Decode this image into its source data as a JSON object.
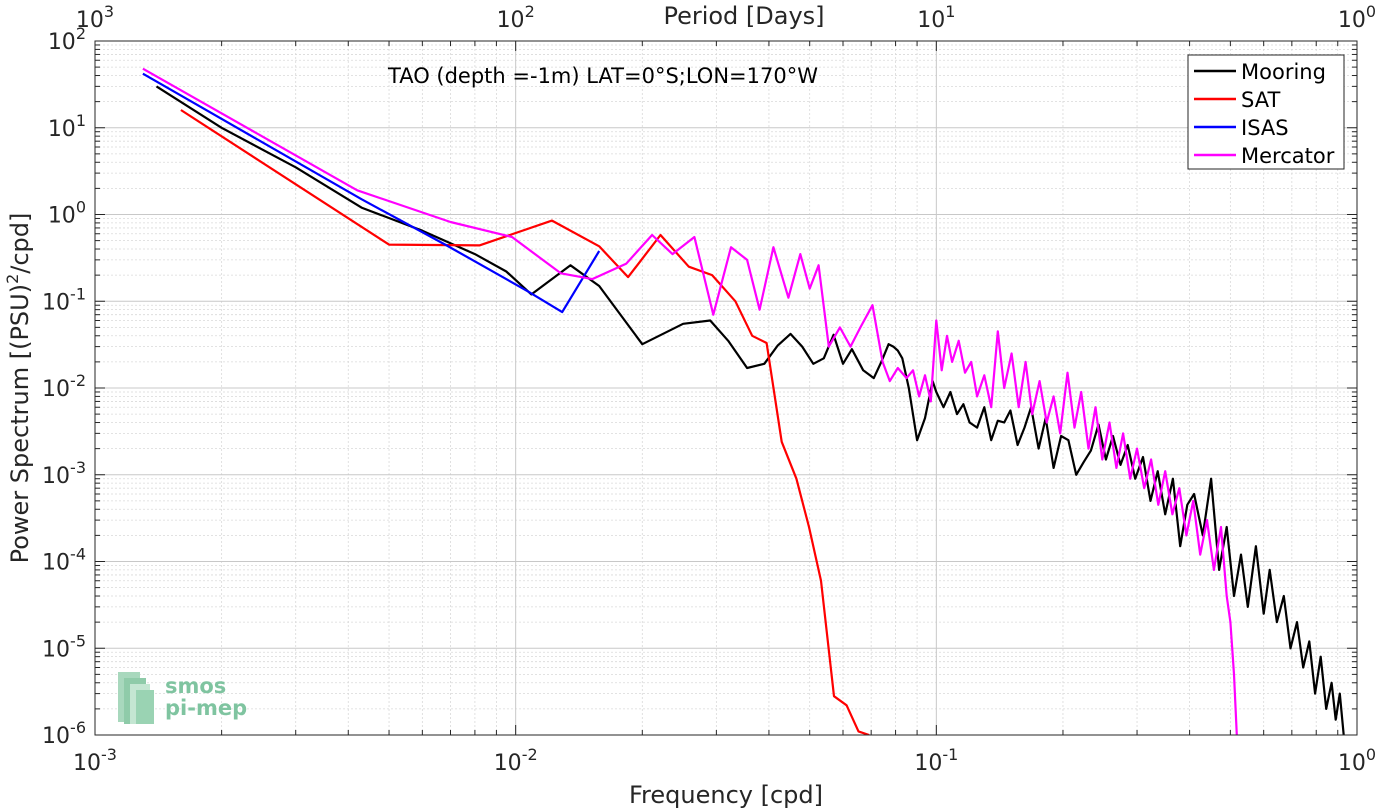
{
  "chart_data": {
    "type": "line",
    "x_scale": "log",
    "y_scale": "log",
    "xlabel": "Frequency [cpd]",
    "ylabel": "Power Spectrum [(PSU)",
    "ylabel_sup": "2",
    "ylabel_end": "/cpd]",
    "top_xlabel": "Period [Days]",
    "xlim": [
      0.001,
      1
    ],
    "ylim": [
      1e-06,
      100
    ],
    "grid": true,
    "annotation": "TAO (depth =-1m) LAT=0°S;LON=170°W",
    "legend_position": "top-right",
    "x_ticks": [
      {
        "value": 0.001,
        "base": "10",
        "exp": "-3"
      },
      {
        "value": 0.01,
        "base": "10",
        "exp": "-2"
      },
      {
        "value": 0.1,
        "base": "10",
        "exp": "-1"
      },
      {
        "value": 1,
        "base": "10",
        "exp": "0"
      }
    ],
    "top_ticks": [
      {
        "value": 0.001,
        "base": "10",
        "exp": "3"
      },
      {
        "value": 0.01,
        "base": "10",
        "exp": "2"
      },
      {
        "value": 0.1,
        "base": "10",
        "exp": "1"
      },
      {
        "value": 1,
        "base": "10",
        "exp": "0"
      }
    ],
    "y_ticks": [
      {
        "value": 100,
        "base": "10",
        "exp": "2"
      },
      {
        "value": 10,
        "base": "10",
        "exp": "1"
      },
      {
        "value": 1,
        "base": "10",
        "exp": "0"
      },
      {
        "value": 0.1,
        "base": "10",
        "exp": "-1"
      },
      {
        "value": 0.01,
        "base": "10",
        "exp": "-2"
      },
      {
        "value": 0.001,
        "base": "10",
        "exp": "-3"
      },
      {
        "value": 0.0001,
        "base": "10",
        "exp": "-4"
      },
      {
        "value": 1e-05,
        "base": "10",
        "exp": "-5"
      },
      {
        "value": 1e-06,
        "base": "10",
        "exp": "-6"
      }
    ],
    "series": [
      {
        "name": "Mooring",
        "color": "#000000",
        "x": [
          0.0014,
          0.002,
          0.003,
          0.0043,
          0.006,
          0.008,
          0.0095,
          0.0109,
          0.012,
          0.0135,
          0.0158,
          0.02,
          0.025,
          0.029,
          0.032,
          0.0355,
          0.039,
          0.042,
          0.045,
          0.048,
          0.051,
          0.054,
          0.057,
          0.06,
          0.063,
          0.067,
          0.071,
          0.074,
          0.077,
          0.079,
          0.081,
          0.083,
          0.086,
          0.09,
          0.094,
          0.098,
          0.1,
          0.104,
          0.108,
          0.112,
          0.116,
          0.12,
          0.125,
          0.13,
          0.135,
          0.14,
          0.145,
          0.15,
          0.156,
          0.162,
          0.168,
          0.175,
          0.182,
          0.19,
          0.198,
          0.206,
          0.215,
          0.224,
          0.233,
          0.243,
          0.253,
          0.263,
          0.274,
          0.285,
          0.297,
          0.31,
          0.323,
          0.336,
          0.35,
          0.365,
          0.38,
          0.395,
          0.41,
          0.43,
          0.45,
          0.47,
          0.49,
          0.51,
          0.53,
          0.55,
          0.575,
          0.6,
          0.62,
          0.645,
          0.67,
          0.695,
          0.72,
          0.745,
          0.77,
          0.795,
          0.82,
          0.845,
          0.87,
          0.89,
          0.91,
          0.93
        ],
        "values": [
          30,
          10,
          3.5,
          1.2,
          0.65,
          0.35,
          0.22,
          0.12,
          0.17,
          0.26,
          0.15,
          0.032,
          0.055,
          0.06,
          0.035,
          0.017,
          0.019,
          0.031,
          0.042,
          0.03,
          0.019,
          0.022,
          0.041,
          0.019,
          0.028,
          0.016,
          0.013,
          0.02,
          0.032,
          0.03,
          0.027,
          0.022,
          0.01,
          0.0025,
          0.0045,
          0.012,
          0.009,
          0.006,
          0.009,
          0.005,
          0.0065,
          0.004,
          0.0035,
          0.006,
          0.0025,
          0.0042,
          0.004,
          0.0055,
          0.0022,
          0.0035,
          0.006,
          0.002,
          0.0045,
          0.0012,
          0.0028,
          0.0025,
          0.001,
          0.0014,
          0.0019,
          0.0038,
          0.0015,
          0.0028,
          0.0013,
          0.0022,
          0.0009,
          0.0016,
          0.0005,
          0.0011,
          0.00035,
          0.0009,
          0.00015,
          0.00045,
          0.0006,
          0.0002,
          0.0009,
          8e-05,
          0.00025,
          4e-05,
          0.00012,
          3e-05,
          0.00015,
          2.5e-05,
          8e-05,
          2e-05,
          4e-05,
          1e-05,
          2e-05,
          6e-06,
          1.2e-05,
          3e-06,
          8e-06,
          2e-06,
          4e-06,
          1.5e-06,
          3e-06,
          1e-06
        ]
      },
      {
        "name": "SAT",
        "color": "#ff0000",
        "x": [
          0.0016,
          0.005,
          0.0082,
          0.0122,
          0.0158,
          0.0185,
          0.0221,
          0.0258,
          0.0293,
          0.0333,
          0.0365,
          0.0395,
          0.0429,
          0.0465,
          0.0498,
          0.0532,
          0.0571,
          0.0612,
          0.0653,
          0.0692
        ],
        "values": [
          16,
          0.45,
          0.44,
          0.85,
          0.43,
          0.19,
          0.58,
          0.25,
          0.2,
          0.1,
          0.04,
          0.033,
          0.0024,
          0.0009,
          0.00025,
          6e-05,
          2.8e-06,
          2.2e-06,
          1.1e-06,
          1e-06
        ]
      },
      {
        "name": "ISAS",
        "color": "#0000ff",
        "x": [
          0.0013,
          0.0043,
          0.0068,
          0.0107,
          0.0129,
          0.0158
        ],
        "values": [
          42,
          1.5,
          0.45,
          0.13,
          0.075,
          0.38
        ]
      },
      {
        "name": "Mercator",
        "color": "#ff00ff",
        "x": [
          0.0013,
          0.0042,
          0.007,
          0.0098,
          0.0128,
          0.0152,
          0.0183,
          0.0211,
          0.0236,
          0.0266,
          0.0295,
          0.0325,
          0.0355,
          0.038,
          0.041,
          0.0445,
          0.0475,
          0.05,
          0.0525,
          0.0555,
          0.059,
          0.0625,
          0.066,
          0.0705,
          0.0745,
          0.0775,
          0.081,
          0.085,
          0.088,
          0.091,
          0.094,
          0.097,
          0.1,
          0.103,
          0.106,
          0.109,
          0.113,
          0.117,
          0.121,
          0.125,
          0.13,
          0.135,
          0.14,
          0.145,
          0.151,
          0.157,
          0.163,
          0.169,
          0.176,
          0.183,
          0.19,
          0.197,
          0.205,
          0.213,
          0.221,
          0.23,
          0.239,
          0.248,
          0.258,
          0.268,
          0.278,
          0.289,
          0.3,
          0.312,
          0.324,
          0.337,
          0.35,
          0.364,
          0.378,
          0.393,
          0.408,
          0.424,
          0.44,
          0.457,
          0.475,
          0.49,
          0.5,
          0.51,
          0.518
        ],
        "values": [
          48,
          1.9,
          0.82,
          0.55,
          0.21,
          0.18,
          0.27,
          0.58,
          0.35,
          0.55,
          0.07,
          0.42,
          0.3,
          0.08,
          0.42,
          0.11,
          0.35,
          0.14,
          0.26,
          0.03,
          0.05,
          0.03,
          0.05,
          0.09,
          0.02,
          0.012,
          0.017,
          0.013,
          0.016,
          0.008,
          0.014,
          0.007,
          0.06,
          0.016,
          0.04,
          0.02,
          0.035,
          0.015,
          0.02,
          0.008,
          0.014,
          0.006,
          0.045,
          0.01,
          0.025,
          0.006,
          0.02,
          0.005,
          0.012,
          0.004,
          0.008,
          0.003,
          0.015,
          0.0035,
          0.009,
          0.002,
          0.006,
          0.0015,
          0.004,
          0.0012,
          0.003,
          0.0009,
          0.002,
          0.0007,
          0.0015,
          0.00045,
          0.0011,
          0.00035,
          0.0007,
          0.0002,
          0.0005,
          0.00012,
          0.0003,
          8e-05,
          0.00025,
          4e-05,
          2e-05,
          5e-06,
          1e-06
        ]
      }
    ]
  },
  "logo": {
    "line1": "smos",
    "line2": "pi-mep"
  }
}
